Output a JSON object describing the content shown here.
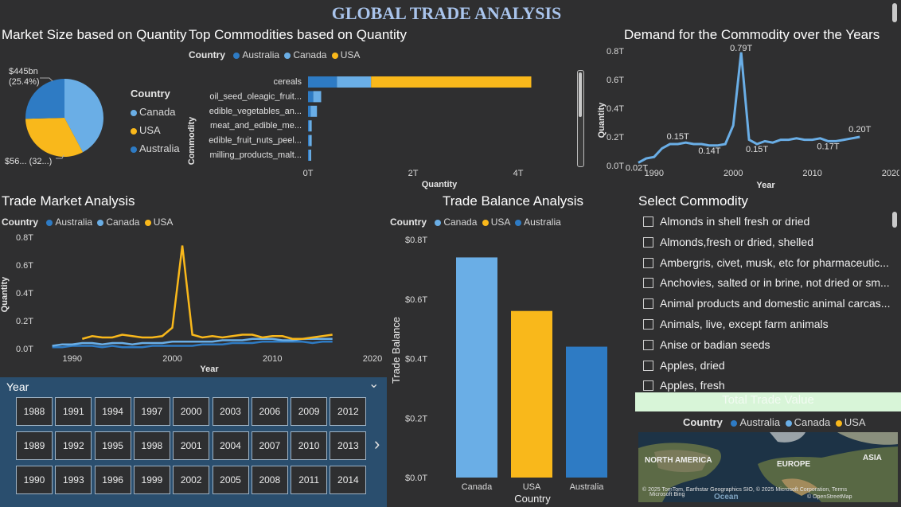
{
  "page_title": "GLOBAL TRADE ANALYSIS",
  "colors": {
    "australia": "#2e7bc4",
    "canada": "#6aaee6",
    "usa": "#f9b81b"
  },
  "market_size": {
    "title": "Market Size based on Quantity",
    "legend_title": "Country",
    "legend": [
      "Canada",
      "USA",
      "Australia"
    ],
    "label_top": "$445bn\n(25.4%)",
    "label_bottom": "$56... (32...)",
    "chart_data": {
      "type": "pie",
      "slices": [
        {
          "name": "Canada",
          "percent": 42.2
        },
        {
          "name": "USA",
          "percent": 32.4
        },
        {
          "name": "Australia",
          "percent": 25.4
        }
      ]
    }
  },
  "top_commodities": {
    "title": "Top Commodities based on Quantity",
    "legend_title": "Country",
    "legend": [
      "Australia",
      "Canada",
      "USA"
    ],
    "ylabel": "Commodity",
    "xlabel": "Quantity",
    "xticks": [
      "0T",
      "2T",
      "4T"
    ],
    "chart_data": {
      "type": "bar",
      "orientation": "horizontal",
      "stacked": true,
      "categories": [
        "cereals",
        "oil_seed_oleagic_fruit...",
        "edible_vegetables_an...",
        "meat_and_edible_me...",
        "edible_fruit_nuts_peel...",
        "milling_products_malt..."
      ],
      "series": [
        {
          "name": "Australia",
          "values": [
            0.55,
            0.1,
            0.05,
            0.02,
            0.02,
            0.02
          ]
        },
        {
          "name": "Canada",
          "values": [
            0.65,
            0.15,
            0.12,
            0.05,
            0.05,
            0.04
          ]
        },
        {
          "name": "USA",
          "values": [
            3.05,
            0.0,
            0.0,
            0.0,
            0.0,
            0.0
          ]
        }
      ],
      "xlim": [
        0,
        4.2
      ]
    }
  },
  "demand": {
    "title": "Demand for the Commodity over the Years",
    "ylabel": "Quantity",
    "xlabel": "Year",
    "yticks": [
      "0.0T",
      "0.2T",
      "0.4T",
      "0.6T",
      "0.8T"
    ],
    "xticks": [
      "1990",
      "2000",
      "2010",
      "2020"
    ],
    "data_labels": [
      "0.02T",
      "0.15T",
      "0.14T",
      "0.79T",
      "0.15T",
      "0.17T",
      "0.20T"
    ],
    "chart_data": {
      "type": "line",
      "x": [
        1988,
        1989,
        1990,
        1991,
        1992,
        1993,
        1994,
        1995,
        1996,
        1997,
        1998,
        1999,
        2000,
        2001,
        2002,
        2003,
        2004,
        2005,
        2006,
        2007,
        2008,
        2009,
        2010,
        2011,
        2012,
        2013,
        2014,
        2015,
        2016
      ],
      "values": [
        0.02,
        0.05,
        0.06,
        0.12,
        0.15,
        0.15,
        0.16,
        0.15,
        0.15,
        0.14,
        0.14,
        0.15,
        0.28,
        0.79,
        0.18,
        0.15,
        0.17,
        0.16,
        0.18,
        0.18,
        0.19,
        0.18,
        0.18,
        0.19,
        0.17,
        0.17,
        0.18,
        0.19,
        0.2
      ],
      "ylim": [
        0,
        0.8
      ],
      "xlim": [
        1987,
        2020
      ]
    }
  },
  "trade_market": {
    "title": "Trade Market Analysis",
    "legend_title": "Country",
    "legend": [
      "Australia",
      "Canada",
      "USA"
    ],
    "ylabel": "Quantity",
    "xlabel": "Year",
    "yticks": [
      "0.0T",
      "0.2T",
      "0.4T",
      "0.6T",
      "0.8T"
    ],
    "xticks": [
      "1990",
      "2000",
      "2010",
      "2020"
    ],
    "chart_data": {
      "type": "line",
      "x": [
        1988,
        1989,
        1990,
        1991,
        1992,
        1993,
        1994,
        1995,
        1996,
        1997,
        1998,
        1999,
        2000,
        2001,
        2002,
        2003,
        2004,
        2005,
        2006,
        2007,
        2008,
        2009,
        2010,
        2011,
        2012,
        2013,
        2014,
        2015,
        2016
      ],
      "series": [
        {
          "name": "Australia",
          "values": [
            0.01,
            0.01,
            0.02,
            0.02,
            0.02,
            0.01,
            0.02,
            0.01,
            0.01,
            0.01,
            0.02,
            0.02,
            0.02,
            0.02,
            0.02,
            0.03,
            0.03,
            0.03,
            0.04,
            0.04,
            0.04,
            0.05,
            0.05,
            0.05,
            0.05,
            0.05,
            0.04,
            0.05,
            0.05
          ]
        },
        {
          "name": "Canada",
          "values": [
            0.02,
            0.03,
            0.03,
            0.04,
            0.04,
            0.03,
            0.04,
            0.04,
            0.03,
            0.04,
            0.04,
            0.04,
            0.05,
            0.05,
            0.05,
            0.05,
            0.05,
            0.06,
            0.06,
            0.06,
            0.07,
            0.07,
            0.07,
            0.06,
            0.06,
            0.07,
            0.07,
            0.07,
            0.07
          ]
        },
        {
          "name": "USA",
          "values": [
            null,
            null,
            null,
            0.07,
            0.09,
            0.08,
            0.08,
            0.1,
            0.09,
            0.08,
            0.08,
            0.09,
            0.15,
            0.74,
            0.1,
            0.08,
            0.09,
            0.08,
            0.09,
            0.1,
            0.1,
            0.08,
            0.09,
            0.09,
            0.07,
            0.07,
            0.08,
            0.09,
            0.1
          ]
        }
      ],
      "ylim": [
        0,
        0.8
      ],
      "xlim": [
        1987,
        2020
      ]
    }
  },
  "trade_balance": {
    "title": "Trade Balance Analysis",
    "legend_title": "Country",
    "legend": [
      "Canada",
      "USA",
      "Australia"
    ],
    "ylabel": "Trade Balance",
    "xlabel": "Country",
    "yticks": [
      "$0.0T",
      "$0.2T",
      "$0.4T",
      "$0.6T",
      "$0.8T"
    ],
    "chart_data": {
      "type": "bar",
      "categories": [
        "Canada",
        "USA",
        "Australia"
      ],
      "values": [
        0.74,
        0.56,
        0.44
      ],
      "ylim": [
        0,
        0.8
      ]
    }
  },
  "year_slicer": {
    "title": "Year",
    "years": [
      [
        "1988",
        "1991",
        "1994",
        "1997",
        "2000",
        "2003",
        "2006",
        "2009",
        "2012"
      ],
      [
        "1989",
        "1992",
        "1995",
        "1998",
        "2001",
        "2004",
        "2007",
        "2010",
        "2013"
      ],
      [
        "1990",
        "1993",
        "1996",
        "1999",
        "2002",
        "2005",
        "2008",
        "2011",
        "2014"
      ]
    ],
    "chevron_down": "⌄",
    "chevron_right": "›"
  },
  "select_commodity": {
    "title": "Select Commodity",
    "items": [
      "Almonds in shell fresh or dried",
      "Almonds,fresh or dried, shelled",
      "Ambergris, civet, musk, etc for pharmaceutic...",
      "Anchovies, salted or in brine, not dried or sm...",
      "Animal products and domestic animal carcas...",
      "Animals, live, except farm animals",
      "Anise or badian seeds",
      "Apples, dried",
      "Apples, fresh"
    ]
  },
  "total_trade": {
    "title": "Total Trade Value",
    "legend_title": "Country",
    "legend": [
      "Australia",
      "Canada",
      "USA"
    ],
    "map_labels": {
      "north_america": "NORTH AMERICA",
      "europe": "EUROPE",
      "asia": "ASIA",
      "ocean": "Ocean"
    },
    "attribution": "© 2025 TomTom, Earthstar Geographics SIO, © 2025 Microsoft Corporation, Terms",
    "attribution2": "© OpenStreetMap",
    "bing": "Microsoft Bing"
  }
}
